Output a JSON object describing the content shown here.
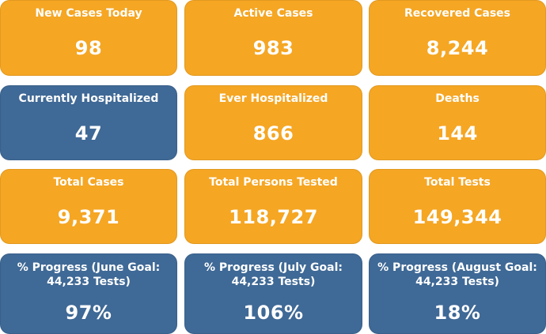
{
  "tiles": [
    {
      "label": "New Cases Today",
      "value": "98"
    },
    {
      "label": "Active Cases",
      "value": "983"
    },
    {
      "label": "Recovered Cases",
      "value": "8,244"
    },
    {
      "label": "Currently Hospitalized",
      "value": "47"
    },
    {
      "label": "Ever Hospitalized",
      "value": "866"
    },
    {
      "label": "Deaths",
      "value": "144"
    },
    {
      "label": "Total Cases",
      "value": "9,371"
    },
    {
      "label": "Total Persons Tested",
      "value": "118,727"
    },
    {
      "label": "Total Tests",
      "value": "149,344"
    },
    {
      "label": "% Progress (June Goal: 44,233 Tests)",
      "value": "97%"
    },
    {
      "label": "% Progress (July Goal: 44,233 Tests)",
      "value": "106%"
    },
    {
      "label": "% Progress (August Goal: 44,233 Tests)",
      "value": "18%"
    }
  ],
  "colors": {
    "orange_tile": "#f5a623",
    "blue_tile": "#3f6996",
    "text": "#ffffff"
  }
}
